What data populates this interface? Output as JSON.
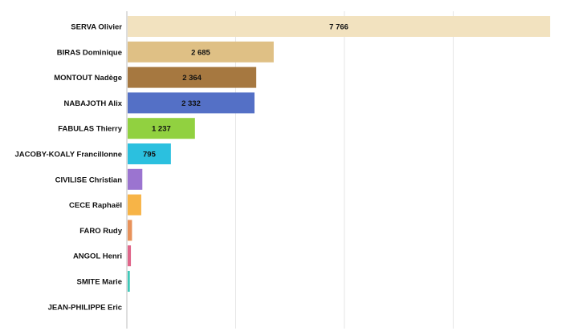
{
  "chart_data": {
    "type": "bar",
    "orientation": "horizontal",
    "categories": [
      "SERVA Olivier",
      "BIRAS Dominique",
      "MONTOUT Nadège",
      "NABAJOTH Alix",
      "FABULAS Thierry",
      "JACOBY-KOALY Francillonne",
      "CIVILISE Christian",
      "CECE Raphaël",
      "FARO Rudy",
      "ANGOL Henri",
      "SMITE Marie",
      "JEAN-PHILIPPE Eric"
    ],
    "values": [
      7766,
      2685,
      2364,
      2332,
      1237,
      795,
      270,
      250,
      80,
      60,
      40,
      5
    ],
    "value_labels": [
      "7 766",
      "2 685",
      "2 364",
      "2 332",
      "1 237",
      "795",
      "",
      "",
      "",
      "",
      "",
      ""
    ],
    "colors": [
      "#f2e2bf",
      "#dfc085",
      "#a67840",
      "#5470c6",
      "#91d140",
      "#2bc0df",
      "#9b74d0",
      "#f7b447",
      "#e8925a",
      "#e0668a",
      "#3fc9b9",
      "#cccccc"
    ],
    "xlim": [
      0,
      8000
    ],
    "grid": true,
    "legend": "none",
    "title": "",
    "xlabel": "",
    "ylabel": ""
  }
}
